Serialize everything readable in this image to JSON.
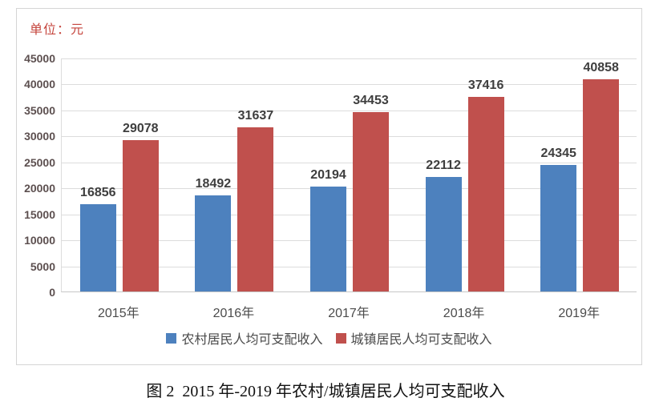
{
  "unit_label": "单位：元",
  "caption": "图 2  2015 年-2019 年农村/城镇居民人均可支配收入",
  "colors": {
    "rural_bar": "#4D81BE",
    "urban_bar": "#C0504D",
    "unit_label": "#C5453D",
    "axis_label": "#5C4F4F",
    "category_label": "#4B4B4B",
    "value_label": "#3E3E3E",
    "legend_label": "#4A4A4A",
    "gridline": "#DCDCDC",
    "axis_line": "#C6C6C6",
    "frame_border": "#D5D5D5",
    "caption": "#111111"
  },
  "chart_data": {
    "type": "bar",
    "title": "",
    "xlabel": "",
    "ylabel": "单位：元",
    "categories": [
      "2015年",
      "2016年",
      "2017年",
      "2018年",
      "2019年"
    ],
    "series": [
      {
        "name": "农村居民人均可支配收入",
        "color_key": "rural_bar",
        "values": [
          16856,
          18492,
          20194,
          22112,
          24345
        ]
      },
      {
        "name": "城镇居民人均可支配收入",
        "color_key": "urban_bar",
        "values": [
          29078,
          31637,
          34453,
          37416,
          40858
        ]
      }
    ],
    "ylim": [
      0,
      45000
    ],
    "ytick_step": 5000,
    "grid": true,
    "legend_position": "bottom"
  }
}
